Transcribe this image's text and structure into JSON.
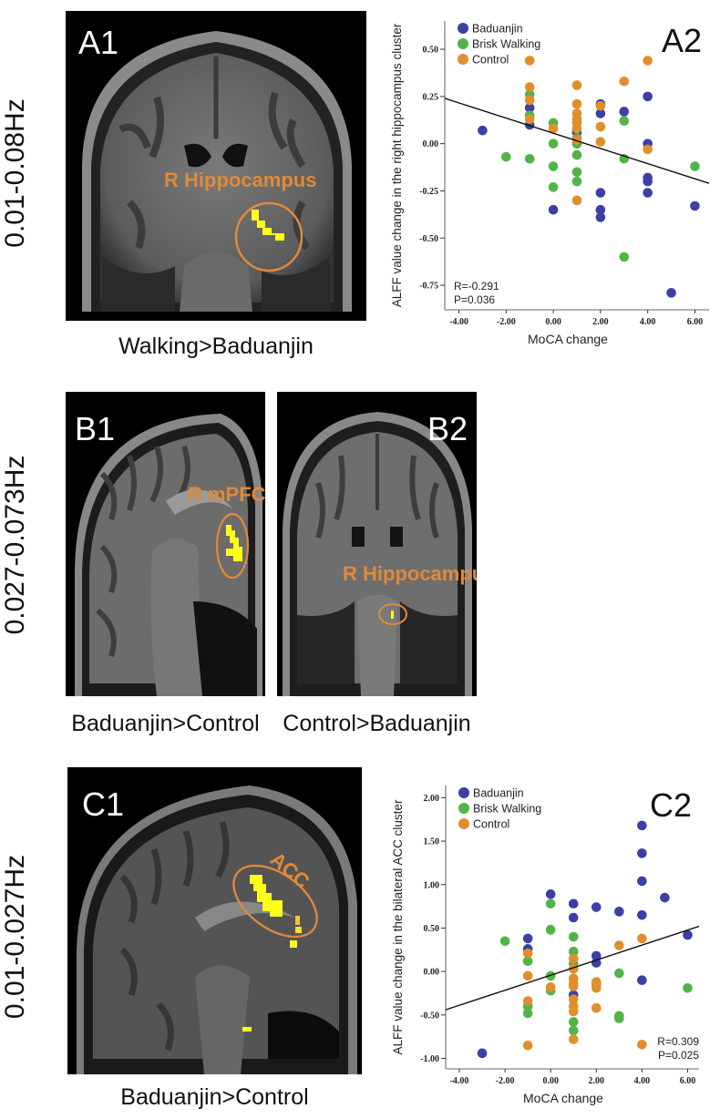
{
  "colors": {
    "baduanjin": "#3d3fa6",
    "brisk_walking": "#52b448",
    "control": "#e08f2c",
    "region_label": "#e08a3a",
    "activation": "#ffff1a",
    "fit_line": "#111111",
    "axis": "#9a9a9a"
  },
  "rows": [
    {
      "label": "0.01-0.08Hz"
    },
    {
      "label": "0.027-0.073Hz"
    },
    {
      "label": "0.01-0.027Hz"
    }
  ],
  "panels": {
    "A1": {
      "id": "A1",
      "region": "R Hippocampus",
      "caption": "Walking>Baduanjin",
      "view": "coronal"
    },
    "B1": {
      "id": "B1",
      "region": "R mPFC",
      "caption": "Baduanjin>Control",
      "view": "sagittal"
    },
    "B2": {
      "id": "B2",
      "region": "R Hippocampus",
      "caption": "Control>Baduanjin",
      "view": "coronal"
    },
    "C1": {
      "id": "C1",
      "region": "ACC",
      "caption": "Baduanjin>Control",
      "view": "sagittal"
    }
  },
  "chart_data": [
    {
      "panel": "A2",
      "type": "scatter",
      "title": "A2",
      "xlabel": "MoCA change",
      "ylabel": "ALFF value change  in the right hippocampus cluster",
      "xlim": [
        -4.6,
        6.6
      ],
      "ylim": [
        -0.88,
        0.65
      ],
      "xticks": [
        "-4.00",
        "-2.00",
        "0.00",
        "2.00",
        "4.00",
        "6.00"
      ],
      "yticks": [
        "0.50",
        "0.25",
        "0.00",
        "-0.25",
        "-0.50",
        "-0.75"
      ],
      "xtick_values": [
        -4,
        -2,
        0,
        2,
        4,
        6
      ],
      "ytick_values": [
        0.5,
        0.25,
        0,
        -0.25,
        -0.5,
        -0.75
      ],
      "grid": false,
      "legend_position": "top-left",
      "legend": [
        "Baduanjin",
        "Brisk Walking",
        "Control"
      ],
      "annotation": [
        "R=-0.291",
        "P=0.036"
      ],
      "annotation_position": "bottom-left",
      "fit_line": {
        "x": [
          -4.6,
          6.6
        ],
        "y": [
          0.24,
          -0.21
        ]
      },
      "series": [
        {
          "name": "Baduanjin",
          "x": [
            -3,
            -1,
            -1,
            0,
            1,
            1,
            2,
            2,
            2,
            2,
            2,
            3,
            4,
            4,
            4,
            4,
            4,
            5,
            6
          ],
          "y": [
            0.07,
            0.19,
            0.1,
            -0.35,
            0.06,
            0.0,
            0.21,
            0.16,
            -0.26,
            -0.35,
            -0.39,
            0.17,
            0.25,
            0.0,
            -0.18,
            -0.2,
            -0.26,
            -0.79,
            -0.33
          ]
        },
        {
          "name": "Brisk Walking",
          "x": [
            -2,
            -1,
            -1,
            -1,
            0,
            0,
            0,
            0,
            1,
            1,
            1,
            1,
            1,
            3,
            3,
            3,
            6
          ],
          "y": [
            -0.07,
            0.26,
            0.15,
            -0.08,
            0.11,
            0.0,
            -0.12,
            -0.23,
            0.0,
            -0.06,
            -0.15,
            -0.2,
            0.03,
            0.12,
            -0.08,
            -0.6,
            -0.12
          ]
        },
        {
          "name": "Control",
          "x": [
            -1,
            -1,
            -1,
            -1,
            0,
            1,
            1,
            1,
            1,
            1,
            1,
            1,
            1,
            2,
            2,
            2,
            3,
            4,
            4
          ],
          "y": [
            0.44,
            0.3,
            0.23,
            0.13,
            0.08,
            0.31,
            0.21,
            0.16,
            0.13,
            0.11,
            0.08,
            0.02,
            -0.3,
            0.2,
            0.09,
            0.01,
            0.33,
            0.44,
            -0.03
          ]
        }
      ]
    },
    {
      "panel": "C2",
      "type": "scatter",
      "title": "C2",
      "xlabel": "MoCA change",
      "ylabel": "ALFF value change  in the bilateral ACC cluster",
      "xlim": [
        -4.6,
        6.5
      ],
      "ylim": [
        -1.12,
        2.14
      ],
      "xticks": [
        "-4.00",
        "-2.00",
        "0.00",
        "2.00",
        "4.00",
        "6.00"
      ],
      "yticks": [
        "2.00",
        "1.50",
        "1.00",
        "0.50",
        "0.00",
        "-0.50",
        "-1.00"
      ],
      "xtick_values": [
        -4,
        -2,
        0,
        2,
        4,
        6
      ],
      "ytick_values": [
        2,
        1.5,
        1,
        0.5,
        0,
        -0.5,
        -1
      ],
      "grid": false,
      "legend_position": "top-left",
      "legend": [
        "Baduanjin",
        "Brisk Walking",
        "Control"
      ],
      "annotation": [
        "R=0.309",
        "P=0.025"
      ],
      "annotation_position": "bottom-right",
      "fit_line": {
        "x": [
          -4.6,
          6.5
        ],
        "y": [
          -0.44,
          0.52
        ]
      },
      "series": [
        {
          "name": "Baduanjin",
          "x": [
            -3,
            -1,
            -1,
            0,
            1,
            1,
            1,
            2,
            2,
            2,
            2,
            3,
            4,
            4,
            4,
            4,
            4,
            5,
            6
          ],
          "y": [
            -0.94,
            0.38,
            0.26,
            0.89,
            0.78,
            0.62,
            -0.27,
            0.74,
            0.18,
            0.1,
            -0.15,
            0.69,
            1.68,
            1.36,
            1.04,
            0.65,
            -0.1,
            0.85,
            0.42
          ]
        },
        {
          "name": "Brisk Walking",
          "x": [
            -2,
            -1,
            -1,
            -1,
            0,
            0,
            0,
            0,
            1,
            1,
            1,
            1,
            1,
            3,
            3,
            3,
            6
          ],
          "y": [
            0.35,
            0.12,
            -0.4,
            -0.48,
            0.78,
            0.48,
            -0.05,
            -0.22,
            0.4,
            0.23,
            0.09,
            -0.68,
            -0.58,
            -0.02,
            -0.51,
            -0.54,
            -0.19
          ]
        },
        {
          "name": "Control",
          "x": [
            -1,
            -1,
            -1,
            -1,
            0,
            1,
            1,
            1,
            1,
            1,
            1,
            1,
            1,
            1,
            2,
            2,
            2,
            2,
            3,
            4,
            4
          ],
          "y": [
            0.21,
            -0.05,
            -0.34,
            -0.85,
            -0.18,
            0.15,
            0.03,
            -0.08,
            -0.14,
            -0.17,
            -0.32,
            -0.4,
            -0.46,
            -0.78,
            -0.12,
            -0.16,
            -0.19,
            -0.42,
            0.3,
            0.38,
            -0.84
          ]
        }
      ]
    }
  ]
}
